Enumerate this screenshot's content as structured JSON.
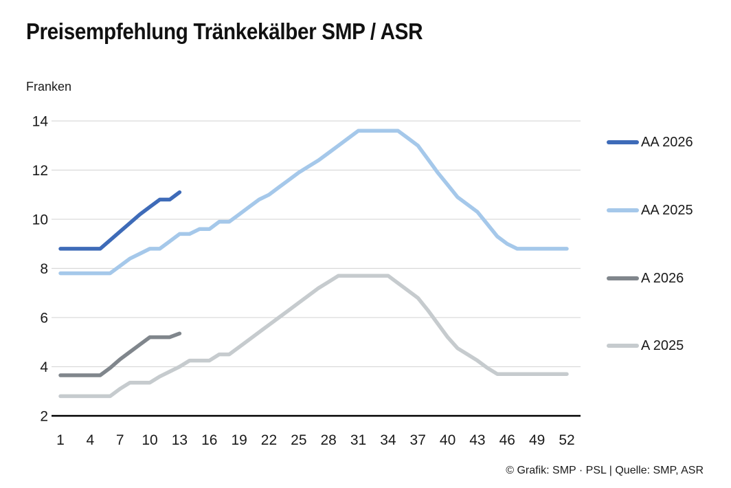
{
  "page": {
    "title": "Preisempfehlung Tränkekälber SMP / ASR",
    "y_axis_unit": "Franken",
    "footer": "© Grafik: SMP · PSL | Quelle: SMP, ASR"
  },
  "colors": {
    "background": "#ffffff",
    "grid": "#d9d9d9",
    "axis": "#000000",
    "text": "#1a1a1a",
    "accent_dark_blue": "#3e6bb8",
    "accent_light_blue": "#a5c8ea",
    "accent_dark_gray": "#80868c",
    "accent_light_gray": "#c6cbce"
  },
  "chart_data": {
    "type": "line",
    "title": "Preisempfehlung Tränkekälber SMP / ASR",
    "ylabel": "Franken",
    "xlabel": "",
    "xlim": [
      1,
      52
    ],
    "ylim": [
      2,
      14
    ],
    "xticks": [
      1,
      4,
      7,
      10,
      13,
      16,
      19,
      22,
      25,
      28,
      31,
      34,
      37,
      40,
      43,
      46,
      49,
      52
    ],
    "yticks": [
      2,
      4,
      6,
      8,
      10,
      12,
      14
    ],
    "grid": true,
    "legend_position": "right",
    "x_is_calendar_week": true,
    "series": [
      {
        "name": "AA 2026",
        "color": "#3e6bb8",
        "x_start": 1,
        "values": [
          8.8,
          8.8,
          8.8,
          8.8,
          8.8,
          9.15,
          9.5,
          9.85,
          10.2,
          10.5,
          10.8,
          10.8,
          11.1
        ]
      },
      {
        "name": "AA 2025",
        "color": "#a5c8ea",
        "x_start": 1,
        "values": [
          7.8,
          7.8,
          7.8,
          7.8,
          7.8,
          7.8,
          8.1,
          8.4,
          8.6,
          8.8,
          8.8,
          9.1,
          9.4,
          9.4,
          9.6,
          9.6,
          9.9,
          9.9,
          10.2,
          10.5,
          10.8,
          11.0,
          11.3,
          11.6,
          11.9,
          12.15,
          12.4,
          12.7,
          13.0,
          13.3,
          13.6,
          13.6,
          13.6,
          13.6,
          13.6,
          13.3,
          13.0,
          12.45,
          11.9,
          11.4,
          10.9,
          10.6,
          10.3,
          9.8,
          9.3,
          9.0,
          8.8,
          8.8,
          8.8,
          8.8,
          8.8,
          8.8
        ]
      },
      {
        "name": "A 2026",
        "color": "#80868c",
        "x_start": 1,
        "values": [
          3.65,
          3.65,
          3.65,
          3.65,
          3.65,
          3.95,
          4.3,
          4.6,
          4.9,
          5.2,
          5.2,
          5.2,
          5.35
        ]
      },
      {
        "name": "A 2025",
        "color": "#c6cbce",
        "x_start": 1,
        "values": [
          2.8,
          2.8,
          2.8,
          2.8,
          2.8,
          2.8,
          3.1,
          3.35,
          3.35,
          3.35,
          3.6,
          3.8,
          4.0,
          4.25,
          4.25,
          4.25,
          4.5,
          4.5,
          4.8,
          5.1,
          5.4,
          5.7,
          6.0,
          6.3,
          6.6,
          6.9,
          7.2,
          7.45,
          7.7,
          7.7,
          7.7,
          7.7,
          7.7,
          7.7,
          7.4,
          7.1,
          6.8,
          6.3,
          5.75,
          5.2,
          4.75,
          4.5,
          4.25,
          3.95,
          3.7,
          3.7,
          3.7,
          3.7,
          3.7,
          3.7,
          3.7,
          3.7
        ]
      }
    ]
  },
  "legend": {
    "items": [
      "AA 2026",
      "AA 2025",
      "A 2026",
      "A 2025"
    ]
  }
}
